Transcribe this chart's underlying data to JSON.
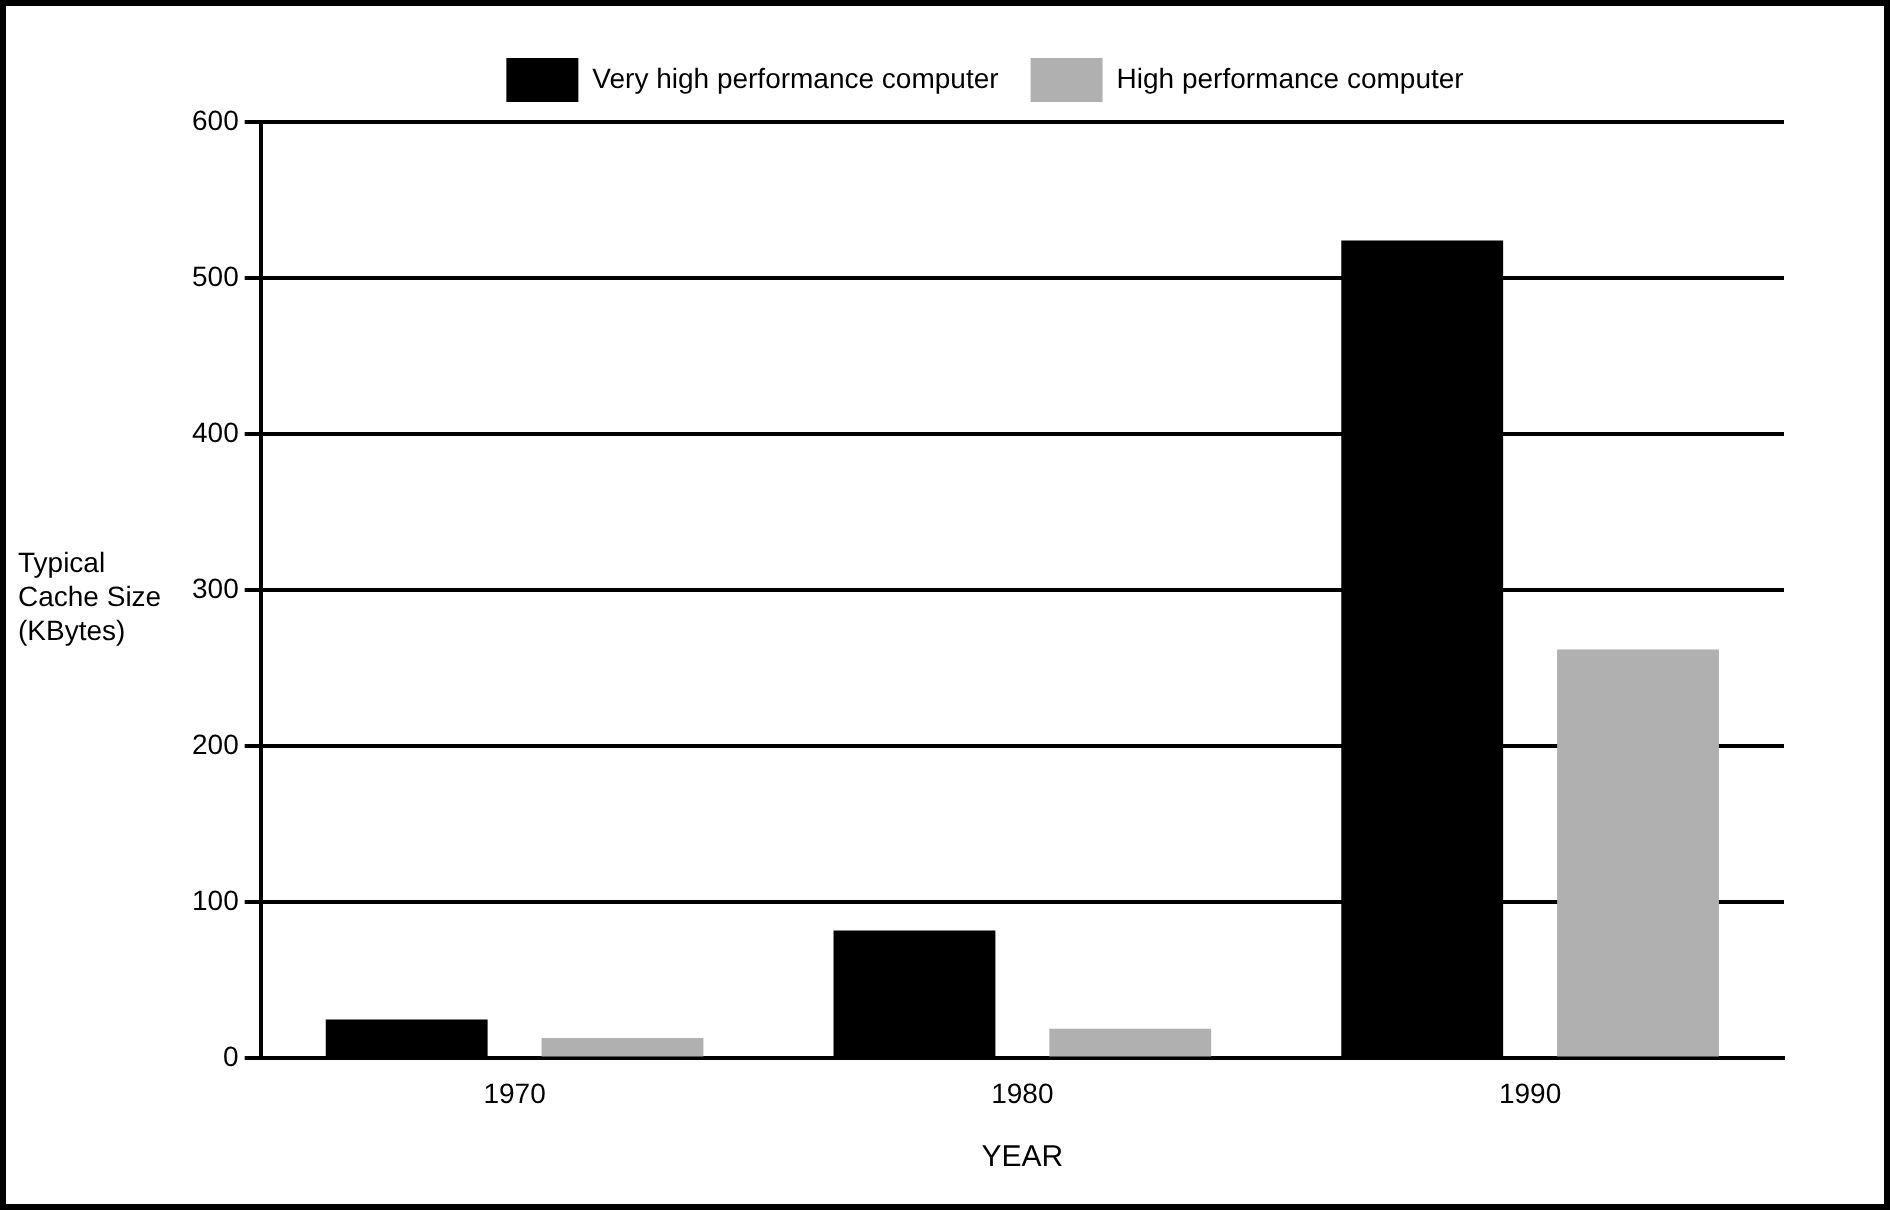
{
  "chart_data": {
    "type": "bar",
    "xlabel": "YEAR",
    "ylabel": "Typical Cache Size (KBytes)",
    "categories": [
      "1970",
      "1980",
      "1990"
    ],
    "series": [
      {
        "name": "Very high performance computer",
        "color": "#000000",
        "values": [
          25,
          82,
          524
        ]
      },
      {
        "name": "High performance computer",
        "color": "#b0b0b0",
        "values": [
          13,
          19,
          262
        ]
      }
    ],
    "ylim": [
      0,
      600
    ],
    "yticks": [
      0,
      100,
      200,
      300,
      400,
      500,
      600
    ],
    "grid": "y",
    "legend": "top"
  }
}
